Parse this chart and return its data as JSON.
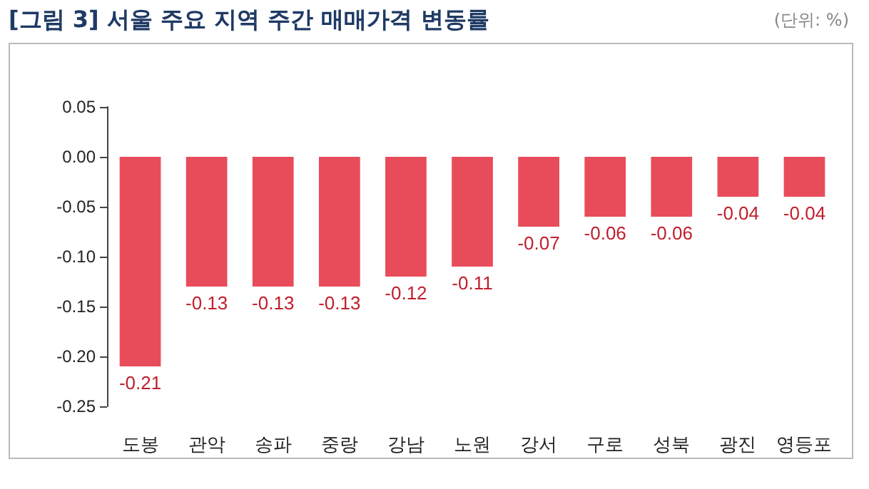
{
  "chart_data": {
    "type": "bar",
    "title": "[그림 3] 서울 주요 지역 주간 매매가격 변동률",
    "annotations": [
      "(단위: %)"
    ],
    "categories": [
      "도봉",
      "관악",
      "송파",
      "중랑",
      "강남",
      "노원",
      "강서",
      "구로",
      "성북",
      "광진",
      "영등포"
    ],
    "values": [
      -0.21,
      -0.13,
      -0.13,
      -0.13,
      -0.12,
      -0.11,
      -0.07,
      -0.06,
      -0.06,
      -0.04,
      -0.04
    ],
    "color": "#e84c5a",
    "data_labels": true,
    "grid": false,
    "ylim": [
      -0.25,
      0.05
    ],
    "yticks": [
      {
        "value": 0.05,
        "label": "0.05"
      },
      {
        "value": 0,
        "label": "0.00"
      },
      {
        "value": -0.05,
        "label": "-0.05"
      },
      {
        "value": -0.1,
        "label": "-0.10"
      },
      {
        "value": -0.15,
        "label": "-0.15"
      },
      {
        "value": -0.2,
        "label": "-0.20"
      },
      {
        "value": -0.25,
        "label": "-0.25"
      }
    ]
  }
}
